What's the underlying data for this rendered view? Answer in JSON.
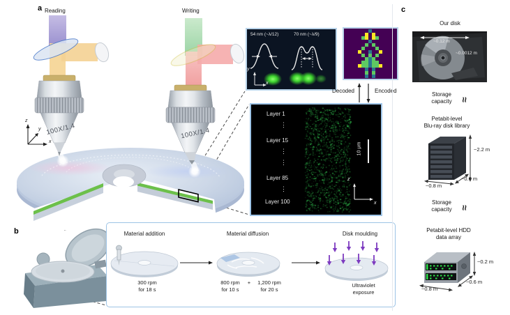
{
  "panel_a": {
    "label": "a",
    "reading_label": "Reading",
    "writing_label": "Writing",
    "objective_left": "100X/1.4",
    "objective_right": "100X/1.4",
    "axes": {
      "z": "z",
      "y": "y",
      "x": "x"
    },
    "profile_inset": {
      "left_label": "54 nm (~λ/12)",
      "right_label": "70 nm (~λ/9)",
      "y_axis": "y",
      "x_axis": "x"
    },
    "code_inset": {
      "decoded_label": "Decoded",
      "encoded_label": "Encoded",
      "bg": "#440154",
      "palette": {
        "T": "#2a788e",
        "G": "#5ec962",
        "Y": "#fde725"
      },
      "grid": [
        ".......T.......",
        "......Y.Y......",
        ".....GY.YG.....",
        ".......T.......",
        "......G.G......",
        ".....G...G.....",
        "....Y..T..Y....",
        ".....G.G.G.....",
        "......GTG......",
        ".....GGTGG.....",
        "....YGGTGGY....",
        "......T.T......",
        "......G.G......",
        "......T.T......"
      ]
    },
    "layer_inset": {
      "layers": [
        "Layer 1",
        "Layer 15",
        "Layer 85",
        "Layer 100"
      ],
      "scale_bar": "10 μm",
      "axes": {
        "z": "z",
        "x": "x"
      },
      "speckle_color": "#3ae25c"
    }
  },
  "panel_b": {
    "label": "b",
    "steps": [
      {
        "title": "Material addition",
        "cap1": "300 rpm",
        "cap2": "for 18 s"
      },
      {
        "title": "Material diffusion",
        "left1": "800 rpm",
        "left2": "for 10 s",
        "plus": "+",
        "right1": "1,200 rpm",
        "right2": "for 20 s"
      },
      {
        "title": "Disk moulding",
        "cap1": "Ultraviolet",
        "cap2": "exposure"
      }
    ]
  },
  "panel_c": {
    "label": "c",
    "our_disk": {
      "title": "Our disk",
      "diameter": "~0.12 m",
      "thickness": "~0.0012 m"
    },
    "equiv1": {
      "line1": "Storage",
      "line2": "capacity",
      "symbol": "≈"
    },
    "bluray": {
      "title1": "Petabit-level",
      "title2": "Blu-ray disk library",
      "height": "~2.2 m",
      "depth": "~0.6 m",
      "width": "~0.8 m"
    },
    "equiv2": {
      "line1": "Storage",
      "line2": "capacity",
      "symbol": "≈"
    },
    "hdd": {
      "title1": "Petabit-level HDD",
      "title2": "data array",
      "height": "~0.2 m",
      "depth": "~0.6 m",
      "width": "~0.8 m"
    }
  }
}
